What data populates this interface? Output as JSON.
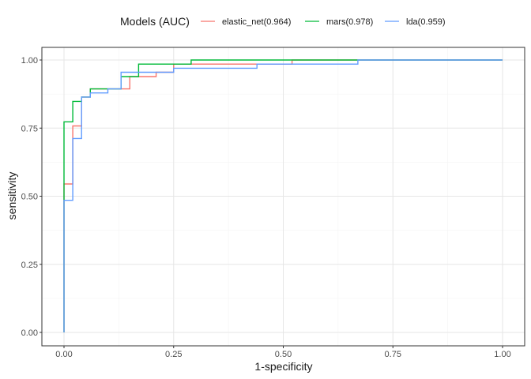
{
  "chart_data": {
    "type": "line",
    "title": "",
    "xlabel": "1-specificity",
    "ylabel": "sensitivity",
    "xlim": [
      0,
      1
    ],
    "ylim": [
      0,
      1
    ],
    "xticks": [
      "0.00",
      "0.25",
      "0.50",
      "0.75",
      "1.00"
    ],
    "yticks": [
      "0.00",
      "0.25",
      "0.50",
      "0.75",
      "1.00"
    ],
    "grid": true,
    "legend_position": "top",
    "legend_title": "Models (AUC)",
    "series": [
      {
        "name": "elastic_net(0.964)",
        "color": "#F8766D",
        "x": [
          0,
          0,
          0.0,
          0.02,
          0.02,
          0.04,
          0.04,
          0.06,
          0.06,
          0.15,
          0.15,
          0.17,
          0.17,
          0.21,
          0.21,
          0.25,
          0.25,
          0.52,
          0.52,
          1.0
        ],
        "y": [
          0,
          0.545,
          0.545,
          0.545,
          0.758,
          0.758,
          0.864,
          0.864,
          0.894,
          0.894,
          0.939,
          0.939,
          0.939,
          0.939,
          0.955,
          0.955,
          0.985,
          0.985,
          1.0,
          1.0
        ]
      },
      {
        "name": "mars(0.978)",
        "color": "#00BA38",
        "x": [
          0,
          0,
          0.02,
          0.02,
          0.04,
          0.04,
          0.06,
          0.06,
          0.13,
          0.13,
          0.17,
          0.17,
          0.29,
          0.29,
          1.0
        ],
        "y": [
          0,
          0.773,
          0.773,
          0.848,
          0.848,
          0.864,
          0.864,
          0.894,
          0.894,
          0.939,
          0.939,
          0.985,
          0.985,
          1.0,
          1.0
        ]
      },
      {
        "name": "lda(0.959)",
        "color": "#619CFF",
        "x": [
          0,
          0,
          0.02,
          0.02,
          0.04,
          0.04,
          0.06,
          0.06,
          0.1,
          0.1,
          0.13,
          0.13,
          0.2,
          0.2,
          0.25,
          0.25,
          0.44,
          0.44,
          0.67,
          0.67,
          1.0
        ],
        "y": [
          0,
          0.485,
          0.485,
          0.712,
          0.712,
          0.864,
          0.864,
          0.879,
          0.879,
          0.894,
          0.894,
          0.955,
          0.955,
          0.955,
          0.955,
          0.97,
          0.97,
          0.985,
          0.985,
          1.0,
          1.0
        ]
      }
    ]
  }
}
